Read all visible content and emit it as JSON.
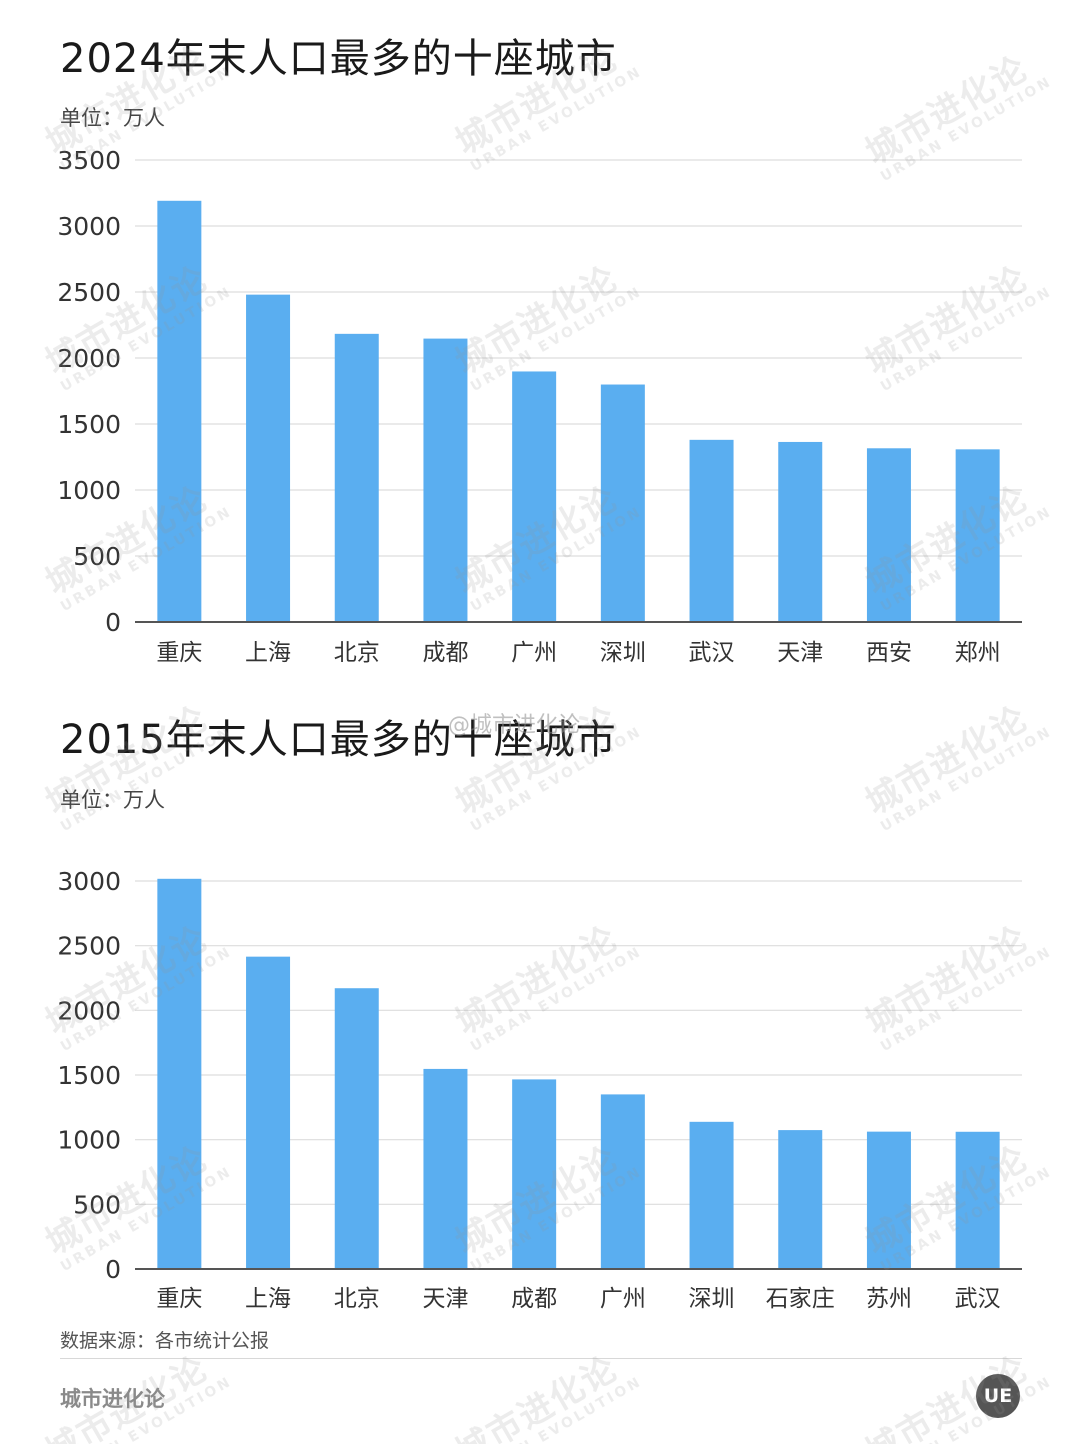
{
  "charts": [
    {
      "title": "2024年末人口最多的十座城市",
      "unit": "单位：万人"
    },
    {
      "title": "2015年末人口最多的十座城市",
      "unit": "单位：万人"
    }
  ],
  "chart_data": [
    {
      "type": "bar",
      "title": "2024年末人口最多的十座城市",
      "ylabel": "单位：万人",
      "xlabel": "",
      "categories": [
        "重庆",
        "上海",
        "北京",
        "成都",
        "广州",
        "深圳",
        "武汉",
        "天津",
        "西安",
        "郑州"
      ],
      "values": [
        3191,
        2480,
        2183,
        2147,
        1898,
        1799,
        1380,
        1364,
        1316,
        1308
      ],
      "ylim": [
        0,
        3500
      ],
      "yticks": [
        0,
        500,
        1000,
        1500,
        2000,
        2500,
        3000,
        3500
      ],
      "grid": true,
      "bar_color": "#5aaef0"
    },
    {
      "type": "bar",
      "title": "2015年末人口最多的十座城市",
      "ylabel": "单位：万人",
      "xlabel": "",
      "categories": [
        "重庆",
        "上海",
        "北京",
        "天津",
        "成都",
        "广州",
        "深圳",
        "石家庄",
        "苏州",
        "武汉"
      ],
      "values": [
        3017,
        2415,
        2171,
        1547,
        1466,
        1350,
        1138,
        1074,
        1062,
        1061
      ],
      "ylim": [
        0,
        3000
      ],
      "yticks": [
        0,
        500,
        1000,
        1500,
        2000,
        2500,
        3000
      ],
      "grid": true,
      "bar_color": "#5aaef0"
    }
  ],
  "footer": {
    "source": "数据来源：各市统计公报",
    "brand": "城市进化论",
    "logo_text": "UE"
  },
  "watermark": {
    "text": "城市进化论",
    "subtext": "URBAN EVOLUTION",
    "weibo_overlay": "@城市进化论"
  }
}
